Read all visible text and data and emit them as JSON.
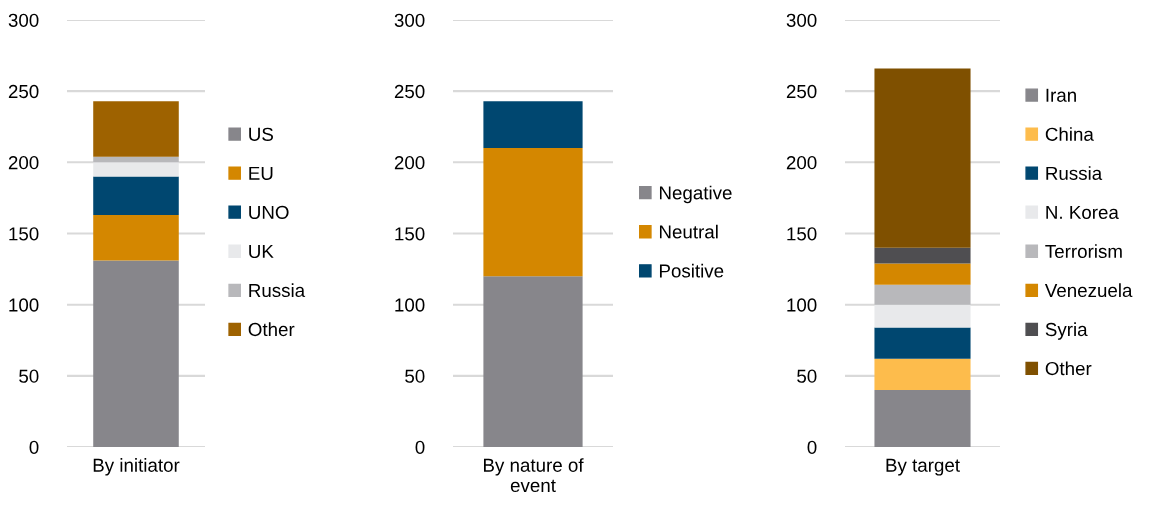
{
  "chart_data": [
    {
      "type": "bar",
      "stacked": true,
      "categories": [
        "By initiator"
      ],
      "ylim": [
        0,
        300
      ],
      "yticks": [
        0,
        50,
        100,
        150,
        200,
        250,
        300
      ],
      "grid": "y",
      "legend": "right",
      "series": [
        {
          "name": "US",
          "color": "#87868b",
          "values": [
            131
          ]
        },
        {
          "name": "EU",
          "color": "#d48700",
          "values": [
            32
          ]
        },
        {
          "name": "UNO",
          "color": "#004770",
          "values": [
            27
          ]
        },
        {
          "name": "UK",
          "color": "#e8e9eb",
          "values": [
            10
          ]
        },
        {
          "name": "Russia",
          "color": "#b8b8bb",
          "values": [
            4
          ]
        },
        {
          "name": "Other",
          "color": "#9e6200",
          "values": [
            39
          ]
        }
      ]
    },
    {
      "type": "bar",
      "stacked": true,
      "categories": [
        "By nature of\nevent"
      ],
      "ylim": [
        0,
        300
      ],
      "yticks": [
        0,
        50,
        100,
        150,
        200,
        250,
        300
      ],
      "grid": "y",
      "legend": "right",
      "series": [
        {
          "name": "Negative",
          "color": "#87868b",
          "values": [
            120
          ]
        },
        {
          "name": "Neutral",
          "color": "#d48700",
          "values": [
            90
          ]
        },
        {
          "name": "Positive",
          "color": "#004770",
          "values": [
            33
          ]
        }
      ]
    },
    {
      "type": "bar",
      "stacked": true,
      "categories": [
        "By target"
      ],
      "ylim": [
        0,
        300
      ],
      "yticks": [
        0,
        50,
        100,
        150,
        200,
        250,
        300
      ],
      "grid": "y",
      "legend": "right",
      "series": [
        {
          "name": "Iran",
          "color": "#87868b",
          "values": [
            40
          ]
        },
        {
          "name": "China",
          "color": "#fdbc4c",
          "values": [
            22
          ]
        },
        {
          "name": "Russia",
          "color": "#004770",
          "values": [
            22
          ]
        },
        {
          "name": "N. Korea",
          "color": "#e8e9eb",
          "values": [
            16
          ]
        },
        {
          "name": "Terrorism",
          "color": "#b8b8bb",
          "values": [
            14
          ]
        },
        {
          "name": "Venezuela",
          "color": "#d48700",
          "values": [
            15
          ]
        },
        {
          "name": "Syria",
          "color": "#4f4e51",
          "values": [
            11
          ]
        },
        {
          "name": "Other",
          "color": "#7f5000",
          "values": [
            126
          ]
        }
      ]
    }
  ]
}
